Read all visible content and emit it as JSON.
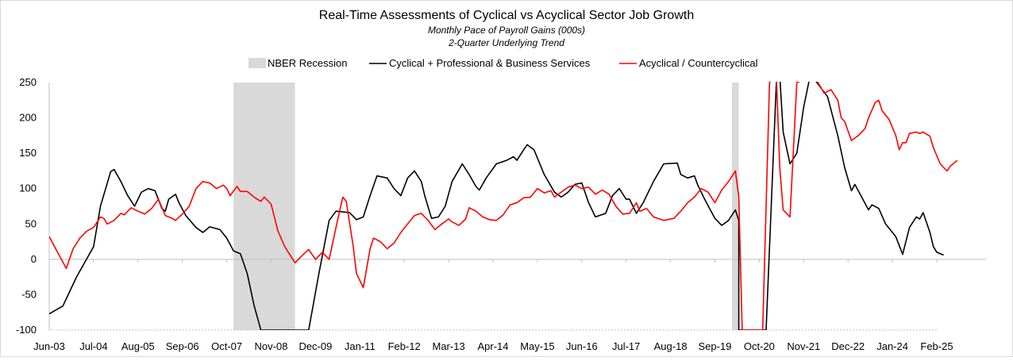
{
  "chart_data": {
    "type": "line",
    "title": "Real-Time Assessments of Cyclical vs Acyclical Sector Job Growth",
    "subtitle": "Monthly Pace of Payroll Gains (000s)",
    "subtitle2": "2-Quarter Underlying Trend",
    "ylim": [
      -100,
      250
    ],
    "yticks": [
      "250",
      "200",
      "150",
      "100",
      "50",
      "0",
      "-50",
      "-100"
    ],
    "ytick_values": [
      250,
      200,
      150,
      100,
      50,
      0,
      -50,
      -100
    ],
    "xticks": [
      "Jun-03",
      "Jul-04",
      "Aug-05",
      "Sep-06",
      "Oct-07",
      "Nov-08",
      "Dec-09",
      "Jan-11",
      "Feb-12",
      "Mar-13",
      "Apr-14",
      "May-15",
      "Jun-16",
      "Jul-17",
      "Aug-18",
      "Sep-19",
      "Oct-20",
      "Nov-21",
      "Dec-22",
      "Jan-24",
      "Feb-25"
    ],
    "x_start": "Jun-03",
    "x_end": "Feb-25",
    "grid": false,
    "legend_position": "top-center",
    "legend": [
      "NBER Recession",
      "Cyclical + Professional & Business Services",
      "Acyclical / Countercyclical"
    ],
    "recessions": [
      {
        "start": "Dec-07",
        "end": "Jun-09"
      },
      {
        "start": "Feb-20",
        "end": "Apr-20"
      }
    ],
    "colors": {
      "recession": "#d9d9d9",
      "cyclical": "#000000",
      "acyclical": "#ff0000",
      "axis": "#bfbfbf"
    },
    "series": [
      {
        "name": "Cyclical + Professional & Business Services",
        "color": "#000000",
        "points": [
          [
            "Jun-03",
            -77
          ],
          [
            "Oct-03",
            -66
          ],
          [
            "Feb-04",
            -25
          ],
          [
            "Jul-04",
            18
          ],
          [
            "Sep-04",
            75
          ],
          [
            "Dec-04",
            124
          ],
          [
            "Jan-05",
            127
          ],
          [
            "Mar-05",
            110
          ],
          [
            "May-05",
            90
          ],
          [
            "Jul-05",
            75
          ],
          [
            "Sep-05",
            95
          ],
          [
            "Nov-05",
            100
          ],
          [
            "Jan-06",
            97
          ],
          [
            "Mar-06",
            72
          ],
          [
            "Apr-06",
            68
          ],
          [
            "May-06",
            85
          ],
          [
            "Jul-06",
            92
          ],
          [
            "Aug-06",
            80
          ],
          [
            "Oct-06",
            62
          ],
          [
            "Jan-07",
            45
          ],
          [
            "Mar-07",
            38
          ],
          [
            "May-07",
            46
          ],
          [
            "Aug-07",
            42
          ],
          [
            "Oct-07",
            30
          ],
          [
            "Dec-07",
            12
          ],
          [
            "Feb-08",
            8
          ],
          [
            "Apr-08",
            -20
          ],
          [
            "Jun-08",
            -65
          ],
          [
            "Aug-08",
            -100
          ],
          [
            "Oct-09",
            -100
          ],
          [
            "Jan-10",
            -20
          ],
          [
            "Apr-10",
            55
          ],
          [
            "Jun-10",
            68
          ],
          [
            "Oct-10",
            66
          ],
          [
            "Dec-10",
            56
          ],
          [
            "Feb-11",
            60
          ],
          [
            "Apr-11",
            90
          ],
          [
            "Jun-11",
            118
          ],
          [
            "Sep-11",
            115
          ],
          [
            "Nov-11",
            100
          ],
          [
            "Jan-12",
            90
          ],
          [
            "Mar-12",
            115
          ],
          [
            "May-12",
            125
          ],
          [
            "Jul-12",
            110
          ],
          [
            "Aug-12",
            90
          ],
          [
            "Oct-12",
            58
          ],
          [
            "Dec-12",
            60
          ],
          [
            "Feb-13",
            75
          ],
          [
            "Apr-13",
            110
          ],
          [
            "Jul-13",
            135
          ],
          [
            "Sep-13",
            120
          ],
          [
            "Nov-13",
            103
          ],
          [
            "Dec-13",
            98
          ],
          [
            "Feb-14",
            115
          ],
          [
            "May-14",
            135
          ],
          [
            "Aug-14",
            140
          ],
          [
            "Oct-14",
            145
          ],
          [
            "Nov-14",
            140
          ],
          [
            "Jan-15",
            155
          ],
          [
            "Feb-15",
            162
          ],
          [
            "Apr-15",
            155
          ],
          [
            "Jul-15",
            120
          ],
          [
            "Oct-15",
            95
          ],
          [
            "Dec-15",
            88
          ],
          [
            "Feb-16",
            95
          ],
          [
            "Apr-16",
            106
          ],
          [
            "Jun-16",
            108
          ],
          [
            "Aug-16",
            80
          ],
          [
            "Oct-16",
            60
          ],
          [
            "Jan-17",
            65
          ],
          [
            "Mar-17",
            90
          ],
          [
            "May-17",
            100
          ],
          [
            "Jul-17",
            85
          ],
          [
            "Aug-17",
            85
          ],
          [
            "Oct-17",
            65
          ],
          [
            "Dec-17",
            80
          ],
          [
            "Mar-18",
            110
          ],
          [
            "Jun-18",
            135
          ],
          [
            "Oct-18",
            136
          ],
          [
            "Nov-18",
            120
          ],
          [
            "Jan-19",
            115
          ],
          [
            "Mar-19",
            118
          ],
          [
            "Apr-19",
            105
          ],
          [
            "Jun-19",
            85
          ],
          [
            "Sep-19",
            58
          ],
          [
            "Nov-19",
            48
          ],
          [
            "Jan-20",
            55
          ],
          [
            "Mar-20",
            70
          ],
          [
            "Apr-20",
            55
          ],
          [
            "Apr-20",
            -100
          ],
          [
            "Dec-20",
            -100
          ],
          [
            "Mar-21",
            250
          ],
          [
            "Apr-21",
            260
          ],
          [
            "May-21",
            180
          ],
          [
            "Jul-21",
            135
          ],
          [
            "Sep-21",
            150
          ],
          [
            "Nov-21",
            215
          ],
          [
            "Jan-22",
            262
          ],
          [
            "Jun-22",
            230
          ],
          [
            "Sep-22",
            175
          ],
          [
            "Nov-22",
            130
          ],
          [
            "Jan-23",
            97
          ],
          [
            "Feb-23",
            106
          ],
          [
            "Apr-23",
            88
          ],
          [
            "Jun-23",
            70
          ],
          [
            "Jul-23",
            77
          ],
          [
            "Sep-23",
            72
          ],
          [
            "Nov-23",
            50
          ],
          [
            "Feb-24",
            32
          ],
          [
            "Apr-24",
            7
          ],
          [
            "Jun-24",
            45
          ],
          [
            "Aug-24",
            60
          ],
          [
            "Sep-24",
            57
          ],
          [
            "Oct-24",
            66
          ],
          [
            "Dec-24",
            38
          ],
          [
            "Jan-25",
            18
          ],
          [
            "Feb-25",
            10
          ],
          [
            "Apr-25",
            6
          ]
        ]
      },
      {
        "name": "Acyclical / Countercyclical",
        "color": "#ff0000",
        "points": [
          [
            "Jun-03",
            32
          ],
          [
            "Sep-03",
            5
          ],
          [
            "Nov-03",
            -13
          ],
          [
            "Jan-04",
            15
          ],
          [
            "Mar-04",
            30
          ],
          [
            "May-04",
            40
          ],
          [
            "Jul-04",
            45
          ],
          [
            "Sep-04",
            60
          ],
          [
            "Oct-04",
            58
          ],
          [
            "Nov-04",
            50
          ],
          [
            "Jan-05",
            55
          ],
          [
            "Mar-05",
            65
          ],
          [
            "Apr-05",
            63
          ],
          [
            "Jun-05",
            73
          ],
          [
            "Aug-05",
            68
          ],
          [
            "Oct-05",
            64
          ],
          [
            "Dec-05",
            72
          ],
          [
            "Feb-06",
            85
          ],
          [
            "Apr-06",
            62
          ],
          [
            "Jun-06",
            58
          ],
          [
            "Jul-06",
            55
          ],
          [
            "Sep-06",
            64
          ],
          [
            "Nov-06",
            75
          ],
          [
            "Jan-07",
            100
          ],
          [
            "Mar-07",
            110
          ],
          [
            "May-07",
            108
          ],
          [
            "Jul-07",
            100
          ],
          [
            "Sep-07",
            105
          ],
          [
            "Oct-07",
            100
          ],
          [
            "Nov-07",
            90
          ],
          [
            "Jan-08",
            103
          ],
          [
            "Feb-08",
            96
          ],
          [
            "Apr-08",
            96
          ],
          [
            "Jun-08",
            88
          ],
          [
            "Aug-08",
            82
          ],
          [
            "Sep-08",
            88
          ],
          [
            "Nov-08",
            78
          ],
          [
            "Jan-09",
            40
          ],
          [
            "Mar-09",
            18
          ],
          [
            "Jun-09",
            -5
          ],
          [
            "Aug-09",
            5
          ],
          [
            "Oct-09",
            14
          ],
          [
            "Dec-09",
            0
          ],
          [
            "Feb-10",
            10
          ],
          [
            "Apr-10",
            0
          ],
          [
            "Jun-10",
            45
          ],
          [
            "Aug-10",
            88
          ],
          [
            "Sep-10",
            82
          ],
          [
            "Nov-10",
            20
          ],
          [
            "Dec-10",
            -20
          ],
          [
            "Feb-11",
            -40
          ],
          [
            "Apr-11",
            15
          ],
          [
            "May-11",
            30
          ],
          [
            "Jul-11",
            25
          ],
          [
            "Aug-11",
            20
          ],
          [
            "Sep-11",
            15
          ],
          [
            "Nov-11",
            23
          ],
          [
            "Jan-12",
            38
          ],
          [
            "Mar-12",
            50
          ],
          [
            "May-12",
            62
          ],
          [
            "Jul-12",
            65
          ],
          [
            "Sep-12",
            55
          ],
          [
            "Nov-12",
            42
          ],
          [
            "Jan-13",
            50
          ],
          [
            "Mar-13",
            57
          ],
          [
            "Apr-13",
            53
          ],
          [
            "Jun-13",
            48
          ],
          [
            "Aug-13",
            57
          ],
          [
            "Sep-13",
            73
          ],
          [
            "Nov-13",
            68
          ],
          [
            "Jan-14",
            60
          ],
          [
            "Mar-14",
            56
          ],
          [
            "May-14",
            55
          ],
          [
            "Jul-14",
            63
          ],
          [
            "Sep-14",
            77
          ],
          [
            "Nov-14",
            80
          ],
          [
            "Jan-15",
            87
          ],
          [
            "Mar-15",
            88
          ],
          [
            "May-15",
            100
          ],
          [
            "Jul-15",
            94
          ],
          [
            "Sep-15",
            97
          ],
          [
            "Oct-15",
            88
          ],
          [
            "Dec-15",
            95
          ],
          [
            "Feb-16",
            102
          ],
          [
            "Apr-16",
            105
          ],
          [
            "Jun-16",
            100
          ],
          [
            "Aug-16",
            102
          ],
          [
            "Oct-16",
            92
          ],
          [
            "Dec-16",
            98
          ],
          [
            "Feb-17",
            92
          ],
          [
            "Apr-17",
            75
          ],
          [
            "Jun-17",
            64
          ],
          [
            "Aug-17",
            65
          ],
          [
            "Oct-17",
            80
          ],
          [
            "Nov-17",
            68
          ],
          [
            "Jan-18",
            72
          ],
          [
            "Mar-18",
            60
          ],
          [
            "Jun-18",
            55
          ],
          [
            "Sep-18",
            58
          ],
          [
            "Nov-18",
            68
          ],
          [
            "Jan-19",
            80
          ],
          [
            "Mar-19",
            88
          ],
          [
            "May-19",
            100
          ],
          [
            "Jul-19",
            95
          ],
          [
            "Sep-19",
            80
          ],
          [
            "Nov-19",
            98
          ],
          [
            "Jan-20",
            110
          ],
          [
            "Mar-20",
            125
          ],
          [
            "Apr-20",
            88
          ],
          [
            "May-20",
            -100
          ],
          [
            "Nov-20",
            -100
          ],
          [
            "Jan-21",
            250
          ],
          [
            "Mar-21",
            260
          ],
          [
            "Apr-21",
            130
          ],
          [
            "May-21",
            70
          ],
          [
            "Jul-21",
            60
          ],
          [
            "Sep-21",
            250
          ],
          [
            "Feb-22",
            260
          ],
          [
            "May-22",
            235
          ],
          [
            "Jul-22",
            240
          ],
          [
            "Sep-22",
            225
          ],
          [
            "Oct-22",
            200
          ],
          [
            "Nov-22",
            195
          ],
          [
            "Jan-23",
            168
          ],
          [
            "Mar-23",
            175
          ],
          [
            "May-23",
            185
          ],
          [
            "Jun-23",
            200
          ],
          [
            "Aug-23",
            222
          ],
          [
            "Sep-23",
            225
          ],
          [
            "Oct-23",
            210
          ],
          [
            "Dec-23",
            198
          ],
          [
            "Feb-24",
            175
          ],
          [
            "Mar-24",
            155
          ],
          [
            "Apr-24",
            165
          ],
          [
            "May-24",
            165
          ],
          [
            "Jun-24",
            178
          ],
          [
            "Aug-24",
            180
          ],
          [
            "Sep-24",
            178
          ],
          [
            "Oct-24",
            180
          ],
          [
            "Dec-24",
            174
          ],
          [
            "Jan-25",
            158
          ],
          [
            "Mar-25",
            135
          ],
          [
            "Apr-25",
            130
          ],
          [
            "May-25",
            125
          ],
          [
            "Jun-25",
            132
          ],
          [
            "Aug-25",
            140
          ]
        ]
      }
    ]
  }
}
